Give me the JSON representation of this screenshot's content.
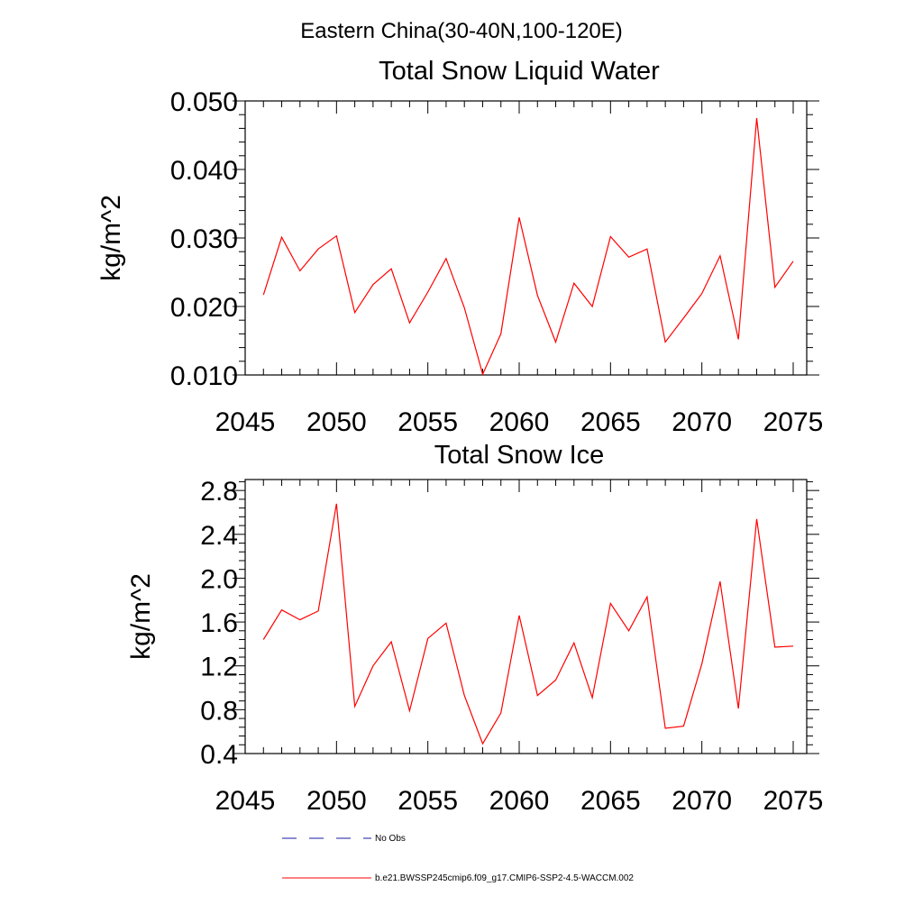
{
  "figure_title": "Eastern China(30-40N,100-120E)",
  "chart_data": [
    {
      "type": "line",
      "title": "Total Snow Liquid Water",
      "xlabel": "",
      "ylabel": "kg/m^2",
      "xlim": [
        2045,
        2075
      ],
      "ylim": [
        0.01,
        0.05
      ],
      "xticks": [
        2045,
        2050,
        2055,
        2060,
        2065,
        2070,
        2075
      ],
      "xtick_labels": [
        "2045",
        "2050",
        "2055",
        "2060",
        "2065",
        "2070",
        "2075"
      ],
      "yticks": [
        0.01,
        0.02,
        0.03,
        0.04,
        0.05
      ],
      "ytick_labels": [
        "0.010",
        "0.020",
        "0.030",
        "0.040",
        "0.050"
      ],
      "grid": false,
      "series": [
        {
          "name": "b.e21.BWSSP245cmip6.f09_g17.CMIP6-SSP2-4.5-WACCM.002",
          "color": "#ff0000",
          "x": [
            2046,
            2047,
            2048,
            2049,
            2050,
            2051,
            2052,
            2053,
            2054,
            2055,
            2056,
            2057,
            2058,
            2059,
            2060,
            2061,
            2062,
            2063,
            2064,
            2065,
            2066,
            2067,
            2068,
            2069,
            2070,
            2071,
            2072,
            2073,
            2074,
            2075
          ],
          "y": [
            0.0217,
            0.0301,
            0.0252,
            0.0284,
            0.0303,
            0.0191,
            0.0232,
            0.0255,
            0.0176,
            0.0221,
            0.027,
            0.0198,
            0.0101,
            0.016,
            0.033,
            0.0216,
            0.0148,
            0.0234,
            0.02,
            0.0302,
            0.0272,
            0.0284,
            0.0148,
            0.0183,
            0.0219,
            0.0274,
            0.0152,
            0.0475,
            0.0228,
            0.0266
          ]
        }
      ]
    },
    {
      "type": "line",
      "title": "Total Snow Ice",
      "xlabel": "",
      "ylabel": "kg/m^2",
      "xlim": [
        2045,
        2075
      ],
      "ylim": [
        0.4,
        2.9
      ],
      "xticks": [
        2045,
        2050,
        2055,
        2060,
        2065,
        2070,
        2075
      ],
      "xtick_labels": [
        "2045",
        "2050",
        "2055",
        "2060",
        "2065",
        "2070",
        "2075"
      ],
      "yticks": [
        0.4,
        0.8,
        1.2,
        1.6,
        2.0,
        2.4,
        2.8
      ],
      "ytick_labels": [
        "0.4",
        "0.8",
        "1.2",
        "1.6",
        "2.0",
        "2.4",
        "2.8"
      ],
      "grid": false,
      "series": [
        {
          "name": "b.e21.BWSSP245cmip6.f09_g17.CMIP6-SSP2-4.5-WACCM.002",
          "color": "#ff0000",
          "x": [
            2046,
            2047,
            2048,
            2049,
            2050,
            2051,
            2052,
            2053,
            2054,
            2055,
            2056,
            2057,
            2058,
            2059,
            2060,
            2061,
            2062,
            2063,
            2064,
            2065,
            2066,
            2067,
            2068,
            2069,
            2070,
            2071,
            2072,
            2073,
            2074,
            2075
          ],
          "y": [
            1.44,
            1.71,
            1.62,
            1.7,
            2.68,
            0.83,
            1.2,
            1.42,
            0.79,
            1.45,
            1.59,
            0.93,
            0.49,
            0.77,
            1.66,
            0.93,
            1.07,
            1.41,
            0.91,
            1.77,
            1.52,
            1.83,
            0.63,
            0.65,
            1.22,
            1.97,
            0.81,
            2.54,
            1.37,
            1.38
          ]
        }
      ]
    }
  ],
  "legend": [
    {
      "label": "No Obs",
      "style": "dashed",
      "color": "#1a1aa0"
    },
    {
      "label": "b.e21.BWSSP245cmip6.f09_g17.CMIP6-SSP2-4.5-WACCM.002",
      "style": "solid",
      "color": "#ff0000"
    }
  ]
}
